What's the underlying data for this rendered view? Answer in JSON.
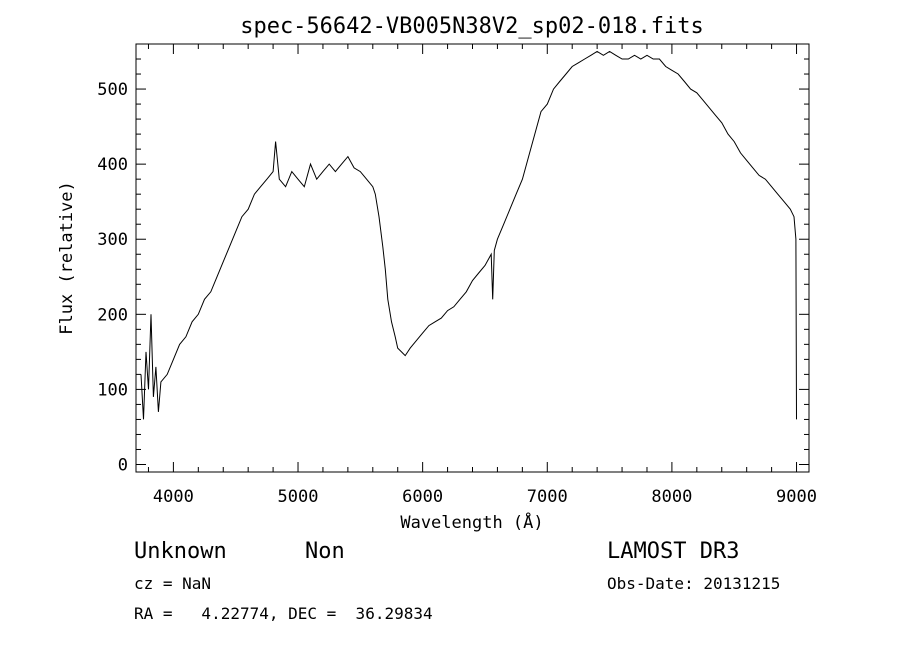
{
  "chart_data": {
    "type": "line",
    "title": "spec-56642-VB005N38V2_sp02-018.fits",
    "xlabel": "Wavelength (Å)",
    "ylabel": "Flux (relative)",
    "xlim": [
      3700,
      9100
    ],
    "ylim": [
      -10,
      560
    ],
    "xticks": [
      4000,
      5000,
      6000,
      7000,
      8000,
      9000
    ],
    "yticks": [
      0,
      100,
      200,
      300,
      400,
      500
    ],
    "grid": false,
    "line_color": "#000000",
    "series": [
      {
        "x": [
          3740,
          3760,
          3780,
          3800,
          3820,
          3840,
          3860,
          3880,
          3900,
          3950,
          4000,
          4050,
          4100,
          4150,
          4200,
          4250,
          4300,
          4350,
          4400,
          4450,
          4500,
          4550,
          4600,
          4650,
          4700,
          4750,
          4800,
          4820,
          4850,
          4900,
          4950,
          5000,
          5050,
          5100,
          5150,
          5200,
          5250,
          5300,
          5350,
          5400,
          5450,
          5500,
          5550,
          5600,
          5620,
          5650,
          5680,
          5700,
          5720,
          5750,
          5780,
          5800,
          5830,
          5860,
          5880,
          5900,
          5950,
          6000,
          6050,
          6100,
          6150,
          6200,
          6250,
          6300,
          6350,
          6400,
          6450,
          6500,
          6550,
          6562,
          6575,
          6600,
          6650,
          6700,
          6750,
          6800,
          6850,
          6900,
          6950,
          7000,
          7050,
          7100,
          7150,
          7200,
          7250,
          7300,
          7350,
          7400,
          7450,
          7500,
          7550,
          7600,
          7650,
          7700,
          7750,
          7800,
          7850,
          7900,
          7950,
          8000,
          8050,
          8100,
          8150,
          8200,
          8250,
          8300,
          8350,
          8400,
          8450,
          8500,
          8550,
          8600,
          8650,
          8700,
          8750,
          8800,
          8850,
          8900,
          8950,
          8980,
          8995,
          9000
        ],
        "y": [
          120,
          60,
          150,
          100,
          200,
          90,
          130,
          70,
          110,
          120,
          140,
          160,
          170,
          190,
          200,
          220,
          230,
          250,
          270,
          290,
          310,
          330,
          340,
          360,
          370,
          380,
          390,
          430,
          380,
          370,
          390,
          380,
          370,
          400,
          380,
          390,
          400,
          390,
          400,
          410,
          395,
          390,
          380,
          370,
          360,
          330,
          290,
          260,
          220,
          190,
          170,
          155,
          150,
          145,
          150,
          155,
          165,
          175,
          185,
          190,
          195,
          205,
          210,
          220,
          230,
          245,
          255,
          265,
          280,
          220,
          285,
          300,
          320,
          340,
          360,
          380,
          410,
          440,
          470,
          480,
          500,
          510,
          520,
          530,
          535,
          540,
          545,
          550,
          545,
          550,
          545,
          540,
          540,
          545,
          540,
          545,
          540,
          540,
          530,
          525,
          520,
          510,
          500,
          495,
          485,
          475,
          465,
          455,
          440,
          430,
          415,
          405,
          395,
          385,
          380,
          370,
          360,
          350,
          340,
          330,
          300,
          60
        ]
      }
    ]
  },
  "info": {
    "object_class": "Unknown",
    "object_subclass": "Non",
    "survey": "LAMOST DR3",
    "cz_line": "cz = NaN",
    "obs_date_line": "Obs-Date: 20131215",
    "coords_line": "RA =   4.22774, DEC =  36.29834"
  }
}
